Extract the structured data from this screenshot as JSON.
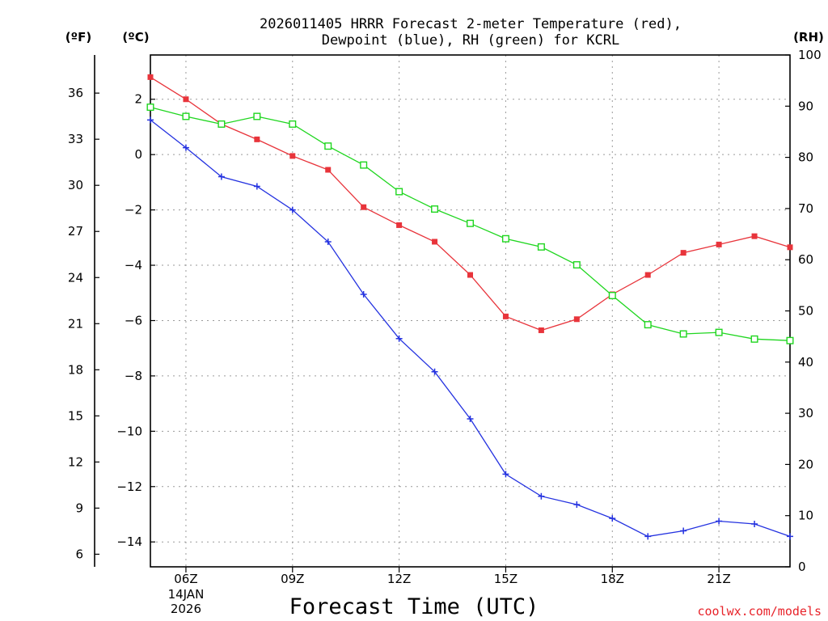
{
  "chart_data": {
    "type": "line",
    "title_line1": "2026011405 HRRR Forecast 2-meter Temperature (red),",
    "title_line2": "Dewpoint (blue), RH (green) for KCRL",
    "xlabel": "Forecast Time (UTC)",
    "credit": "coolwx.com/models",
    "units": {
      "left_outer": "(ºF)",
      "left_inner": "(ºC)",
      "right": "(RH)"
    },
    "x": [
      "05Z",
      "06Z",
      "07Z",
      "08Z",
      "09Z",
      "10Z",
      "11Z",
      "12Z",
      "13Z",
      "14Z",
      "15Z",
      "16Z",
      "17Z",
      "18Z",
      "19Z",
      "20Z",
      "21Z",
      "22Z",
      "23Z"
    ],
    "x_tick_labels": [
      {
        "label": "06Z",
        "sub": [
          "14JAN",
          "2026"
        ]
      },
      {
        "label": "09Z"
      },
      {
        "label": "12Z"
      },
      {
        "label": "15Z"
      },
      {
        "label": "18Z"
      },
      {
        "label": "21Z"
      }
    ],
    "axes": {
      "celsius": {
        "ylim": [
          -14.9,
          3.6
        ],
        "ticks": [
          "2",
          "0",
          "-2",
          "-4",
          "-6",
          "-8",
          "-10",
          "-12",
          "-14"
        ]
      },
      "fahrenheit": {
        "ticks": [
          "36",
          "33",
          "30",
          "27",
          "24",
          "21",
          "18",
          "15",
          "12",
          "9",
          "6"
        ]
      },
      "rh": {
        "ylim": [
          0,
          100
        ],
        "ticks": [
          "100",
          "90",
          "80",
          "70",
          "60",
          "50",
          "40",
          "30",
          "20",
          "10",
          "0"
        ]
      }
    },
    "grid": true,
    "series": [
      {
        "name": "Temperature",
        "axis": "celsius",
        "color": "#e8343b",
        "marker": "filled-square",
        "values": [
          2.8,
          2.0,
          1.1,
          0.55,
          -0.05,
          -0.55,
          -1.9,
          -2.55,
          -3.15,
          -4.35,
          -5.85,
          -6.35,
          -5.95,
          -5.05,
          -4.35,
          -3.55,
          -3.25,
          -2.95,
          -3.35
        ]
      },
      {
        "name": "Dewpoint",
        "axis": "celsius",
        "color": "#2432e0",
        "marker": "plus",
        "values": [
          1.25,
          0.25,
          -0.8,
          -1.15,
          -2.0,
          -3.15,
          -5.05,
          -6.65,
          -7.85,
          -9.55,
          -11.55,
          -12.35,
          -12.65,
          -13.15,
          -13.8,
          -13.6,
          -13.25,
          -13.35,
          -13.8
        ]
      },
      {
        "name": "RH",
        "axis": "rh",
        "color": "#1fd61f",
        "marker": "open-square",
        "values": [
          89.8,
          88.0,
          86.5,
          88.0,
          86.5,
          82.2,
          78.5,
          73.3,
          69.9,
          67.1,
          64.1,
          62.5,
          59.0,
          53.0,
          47.3,
          45.5,
          45.8,
          44.5,
          44.2
        ]
      }
    ]
  }
}
